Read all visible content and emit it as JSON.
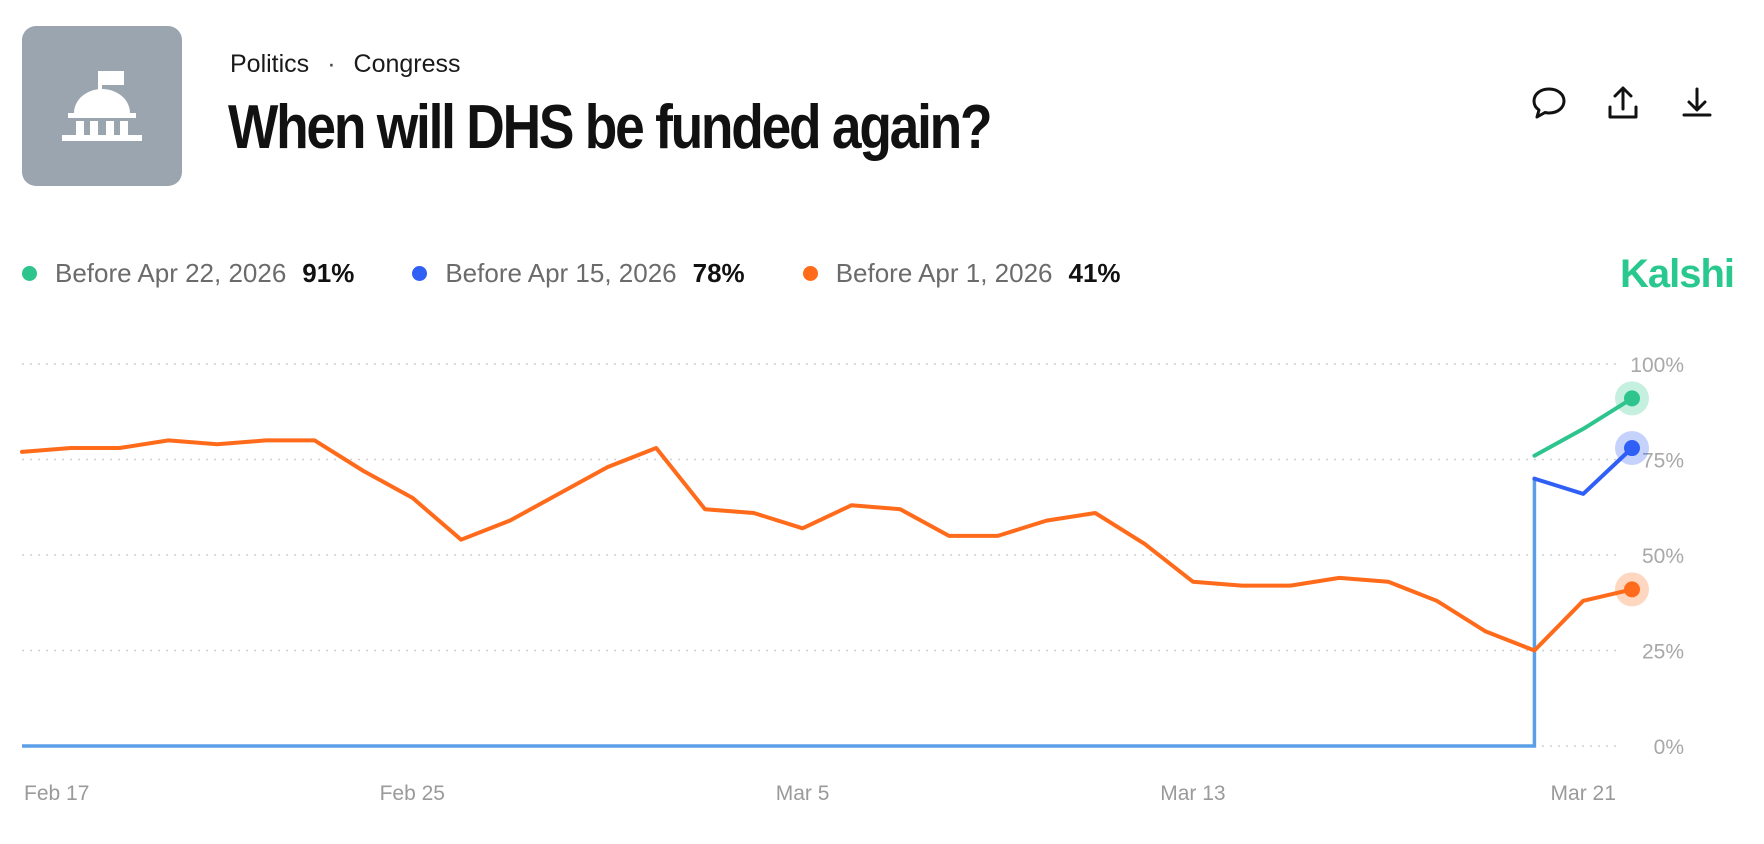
{
  "header": {
    "category": "Politics",
    "separator": "·",
    "subcategory": "Congress",
    "title": "When will DHS be funded again?",
    "icon": "capitol-building-icon"
  },
  "actions": [
    {
      "name": "comment-icon"
    },
    {
      "name": "share-icon"
    },
    {
      "name": "download-icon"
    }
  ],
  "brand": {
    "name": "Kalshi",
    "color": "#28c88e"
  },
  "legend": [
    {
      "label": "Before Apr 22, 2026",
      "value": "91%",
      "color": "#2ec48d"
    },
    {
      "label": "Before Apr 15, 2026",
      "value": "78%",
      "color": "#2f5ff5"
    },
    {
      "label": "Before Apr 1, 2026",
      "value": "41%",
      "color": "#ff6b1a"
    }
  ],
  "chart_data": {
    "type": "line",
    "x_tick_labels": [
      "Feb 17",
      "Feb 25",
      "Mar 5",
      "Mar 13",
      "Mar 21"
    ],
    "y_tick_labels": [
      "100%",
      "75%",
      "50%",
      "25%",
      "0%"
    ],
    "xlim": [
      "Feb 17",
      "Mar 22"
    ],
    "ylim": [
      0,
      100
    ],
    "grid": "horizontal dotted",
    "series": [
      {
        "name": "Before Apr 1, 2026",
        "color": "#ff6b1a",
        "x": [
          "Feb 17",
          "Feb 18",
          "Feb 19",
          "Feb 20",
          "Feb 21",
          "Feb 22",
          "Feb 23",
          "Feb 24",
          "Feb 25",
          "Feb 26",
          "Feb 27",
          "Feb 28",
          "Mar 1",
          "Mar 2",
          "Mar 3",
          "Mar 4",
          "Mar 5",
          "Mar 6",
          "Mar 7",
          "Mar 8",
          "Mar 9",
          "Mar 10",
          "Mar 11",
          "Mar 12",
          "Mar 13",
          "Mar 14",
          "Mar 15",
          "Mar 16",
          "Mar 17",
          "Mar 18",
          "Mar 19",
          "Mar 20",
          "Mar 21",
          "Mar 22"
        ],
        "values": [
          77,
          78,
          78,
          80,
          79,
          80,
          80,
          72,
          65,
          54,
          59,
          66,
          73,
          78,
          62,
          61,
          57,
          63,
          62,
          55,
          55,
          59,
          61,
          53,
          43,
          42,
          42,
          44,
          43,
          38,
          30,
          25,
          38,
          41
        ]
      },
      {
        "name": "Before Apr 15, 2026",
        "color": "#2f5ff5",
        "x": [
          "Mar 20",
          "Mar 21",
          "Mar 22"
        ],
        "values": [
          70,
          66,
          78
        ]
      },
      {
        "name": "Before Apr 22, 2026",
        "color": "#2ec48d",
        "x": [
          "Mar 20",
          "Mar 21",
          "Mar 22"
        ],
        "values": [
          76,
          83,
          91
        ]
      }
    ]
  }
}
